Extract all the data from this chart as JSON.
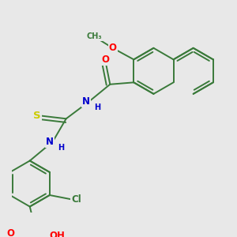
{
  "bg_color": "#e8e8e8",
  "bond_color": "#3a7a3a",
  "atom_colors": {
    "O": "#ff0000",
    "N": "#0000cc",
    "S": "#cccc00",
    "Cl": "#3a7a3a",
    "C": "#3a7a3a",
    "H": "#3a7a3a"
  },
  "font_size": 8.5,
  "bond_width": 1.4,
  "dbo": 0.08
}
